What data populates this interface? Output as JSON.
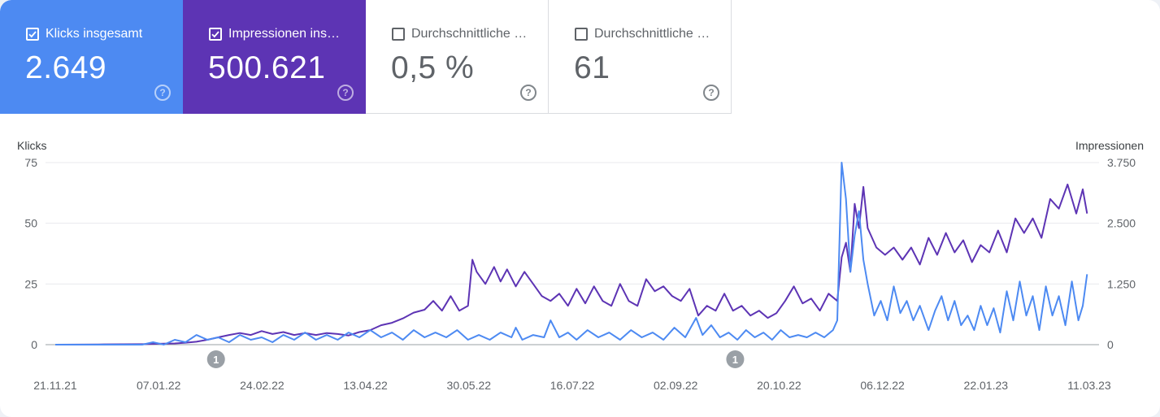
{
  "cards": [
    {
      "label": "Klicks insgesamt",
      "value": "2.649",
      "checked": true,
      "help_icon": "help-circle-icon"
    },
    {
      "label": "Impressionen ins…",
      "value": "500.621",
      "checked": true,
      "help_icon": "help-circle-icon"
    },
    {
      "label": "Durchschnittliche …",
      "value": "0,5 %",
      "checked": false,
      "help_icon": "help-circle-icon"
    },
    {
      "label": "Durchschnittliche …",
      "value": "61",
      "checked": false,
      "help_icon": "help-circle-icon"
    }
  ],
  "colors": {
    "clicks": "#4d8af2",
    "impressions": "#5d34b4",
    "grid": "#e8eaed",
    "axis": "#9aa0a6",
    "annotation": "#9aa0a6"
  },
  "chart_data": {
    "type": "line",
    "left_axis_label": "Klicks",
    "right_axis_label": "Impressionen",
    "left_ticks": [
      "75",
      "50",
      "25",
      "0"
    ],
    "right_ticks": [
      "3.750",
      "2.500",
      "1.250",
      "0"
    ],
    "left_ylim": [
      0,
      75
    ],
    "right_ylim": [
      0,
      3750
    ],
    "x_ticks": [
      "21.11.21",
      "07.01.22",
      "24.02.22",
      "13.04.22",
      "30.05.22",
      "16.07.22",
      "02.09.22",
      "20.10.22",
      "06.12.22",
      "22.01.23",
      "11.03.23"
    ],
    "x_range_days": [
      0,
      476
    ],
    "annotations": [
      {
        "label": "1",
        "day": 74
      },
      {
        "label": "1",
        "day": 313
      }
    ],
    "series": [
      {
        "name": "Klicks",
        "axis": "left",
        "color": "#4d8af2",
        "points": [
          [
            0,
            0
          ],
          [
            10,
            0
          ],
          [
            20,
            0
          ],
          [
            30,
            0
          ],
          [
            40,
            0
          ],
          [
            45,
            1
          ],
          [
            50,
            0
          ],
          [
            55,
            2
          ],
          [
            60,
            1
          ],
          [
            65,
            4
          ],
          [
            70,
            2
          ],
          [
            75,
            3
          ],
          [
            80,
            1
          ],
          [
            85,
            4
          ],
          [
            90,
            2
          ],
          [
            95,
            3
          ],
          [
            100,
            1
          ],
          [
            105,
            4
          ],
          [
            110,
            2
          ],
          [
            115,
            5
          ],
          [
            120,
            2
          ],
          [
            125,
            4
          ],
          [
            130,
            2
          ],
          [
            135,
            5
          ],
          [
            140,
            3
          ],
          [
            145,
            6
          ],
          [
            150,
            3
          ],
          [
            155,
            5
          ],
          [
            160,
            2
          ],
          [
            165,
            6
          ],
          [
            170,
            3
          ],
          [
            175,
            5
          ],
          [
            180,
            3
          ],
          [
            185,
            6
          ],
          [
            190,
            2
          ],
          [
            195,
            4
          ],
          [
            200,
            2
          ],
          [
            205,
            5
          ],
          [
            210,
            3
          ],
          [
            212,
            7
          ],
          [
            215,
            2
          ],
          [
            220,
            4
          ],
          [
            225,
            3
          ],
          [
            228,
            10
          ],
          [
            232,
            3
          ],
          [
            236,
            5
          ],
          [
            240,
            2
          ],
          [
            245,
            6
          ],
          [
            250,
            3
          ],
          [
            255,
            5
          ],
          [
            260,
            2
          ],
          [
            265,
            6
          ],
          [
            270,
            3
          ],
          [
            275,
            5
          ],
          [
            280,
            2
          ],
          [
            285,
            7
          ],
          [
            290,
            3
          ],
          [
            295,
            11
          ],
          [
            298,
            4
          ],
          [
            302,
            8
          ],
          [
            306,
            3
          ],
          [
            310,
            5
          ],
          [
            314,
            2
          ],
          [
            318,
            6
          ],
          [
            322,
            3
          ],
          [
            326,
            5
          ],
          [
            330,
            2
          ],
          [
            334,
            6
          ],
          [
            338,
            3
          ],
          [
            342,
            4
          ],
          [
            346,
            3
          ],
          [
            350,
            5
          ],
          [
            354,
            3
          ],
          [
            358,
            6
          ],
          [
            360,
            10
          ],
          [
            362,
            75
          ],
          [
            364,
            60
          ],
          [
            366,
            30
          ],
          [
            368,
            45
          ],
          [
            370,
            55
          ],
          [
            372,
            35
          ],
          [
            374,
            25
          ],
          [
            377,
            12
          ],
          [
            380,
            18
          ],
          [
            383,
            10
          ],
          [
            386,
            24
          ],
          [
            389,
            13
          ],
          [
            392,
            18
          ],
          [
            395,
            10
          ],
          [
            398,
            16
          ],
          [
            402,
            6
          ],
          [
            405,
            14
          ],
          [
            408,
            20
          ],
          [
            411,
            10
          ],
          [
            414,
            18
          ],
          [
            417,
            8
          ],
          [
            420,
            12
          ],
          [
            423,
            6
          ],
          [
            426,
            16
          ],
          [
            429,
            8
          ],
          [
            432,
            15
          ],
          [
            435,
            5
          ],
          [
            438,
            22
          ],
          [
            441,
            10
          ],
          [
            444,
            26
          ],
          [
            447,
            12
          ],
          [
            450,
            20
          ],
          [
            453,
            6
          ],
          [
            456,
            24
          ],
          [
            459,
            12
          ],
          [
            462,
            20
          ],
          [
            465,
            8
          ],
          [
            468,
            26
          ],
          [
            471,
            10
          ],
          [
            473,
            16
          ],
          [
            475,
            29
          ]
        ]
      },
      {
        "name": "Impressionen",
        "axis": "right",
        "color": "#5d34b4",
        "points": [
          [
            0,
            0
          ],
          [
            20,
            5
          ],
          [
            40,
            10
          ],
          [
            50,
            20
          ],
          [
            55,
            25
          ],
          [
            60,
            40
          ],
          [
            65,
            60
          ],
          [
            70,
            100
          ],
          [
            75,
            150
          ],
          [
            80,
            200
          ],
          [
            85,
            240
          ],
          [
            90,
            200
          ],
          [
            95,
            280
          ],
          [
            100,
            220
          ],
          [
            105,
            260
          ],
          [
            110,
            200
          ],
          [
            115,
            240
          ],
          [
            120,
            200
          ],
          [
            125,
            240
          ],
          [
            130,
            220
          ],
          [
            135,
            190
          ],
          [
            140,
            260
          ],
          [
            145,
            300
          ],
          [
            150,
            400
          ],
          [
            155,
            450
          ],
          [
            160,
            540
          ],
          [
            165,
            660
          ],
          [
            170,
            720
          ],
          [
            174,
            900
          ],
          [
            178,
            700
          ],
          [
            182,
            1000
          ],
          [
            186,
            700
          ],
          [
            190,
            800
          ],
          [
            192,
            1750
          ],
          [
            194,
            1500
          ],
          [
            198,
            1250
          ],
          [
            202,
            1600
          ],
          [
            205,
            1300
          ],
          [
            208,
            1550
          ],
          [
            212,
            1200
          ],
          [
            216,
            1500
          ],
          [
            220,
            1250
          ],
          [
            224,
            1000
          ],
          [
            228,
            900
          ],
          [
            232,
            1050
          ],
          [
            236,
            800
          ],
          [
            240,
            1150
          ],
          [
            244,
            850
          ],
          [
            248,
            1200
          ],
          [
            252,
            900
          ],
          [
            256,
            800
          ],
          [
            260,
            1250
          ],
          [
            264,
            900
          ],
          [
            268,
            800
          ],
          [
            272,
            1350
          ],
          [
            276,
            1100
          ],
          [
            280,
            1200
          ],
          [
            284,
            1000
          ],
          [
            288,
            900
          ],
          [
            292,
            1150
          ],
          [
            296,
            600
          ],
          [
            300,
            800
          ],
          [
            304,
            700
          ],
          [
            308,
            1050
          ],
          [
            312,
            700
          ],
          [
            316,
            800
          ],
          [
            320,
            600
          ],
          [
            324,
            700
          ],
          [
            328,
            550
          ],
          [
            332,
            650
          ],
          [
            336,
            900
          ],
          [
            340,
            1200
          ],
          [
            344,
            850
          ],
          [
            348,
            950
          ],
          [
            352,
            700
          ],
          [
            356,
            1050
          ],
          [
            360,
            900
          ],
          [
            362,
            1800
          ],
          [
            364,
            2100
          ],
          [
            366,
            1500
          ],
          [
            368,
            2900
          ],
          [
            370,
            2400
          ],
          [
            372,
            3250
          ],
          [
            374,
            2400
          ],
          [
            378,
            2000
          ],
          [
            382,
            1850
          ],
          [
            386,
            2000
          ],
          [
            390,
            1750
          ],
          [
            394,
            2000
          ],
          [
            398,
            1650
          ],
          [
            402,
            2200
          ],
          [
            406,
            1850
          ],
          [
            410,
            2300
          ],
          [
            414,
            1900
          ],
          [
            418,
            2150
          ],
          [
            422,
            1700
          ],
          [
            426,
            2050
          ],
          [
            430,
            1900
          ],
          [
            434,
            2350
          ],
          [
            438,
            1900
          ],
          [
            442,
            2600
          ],
          [
            446,
            2300
          ],
          [
            450,
            2600
          ],
          [
            454,
            2200
          ],
          [
            458,
            3000
          ],
          [
            462,
            2800
          ],
          [
            466,
            3300
          ],
          [
            470,
            2700
          ],
          [
            473,
            3200
          ],
          [
            475,
            2700
          ]
        ]
      }
    ]
  }
}
